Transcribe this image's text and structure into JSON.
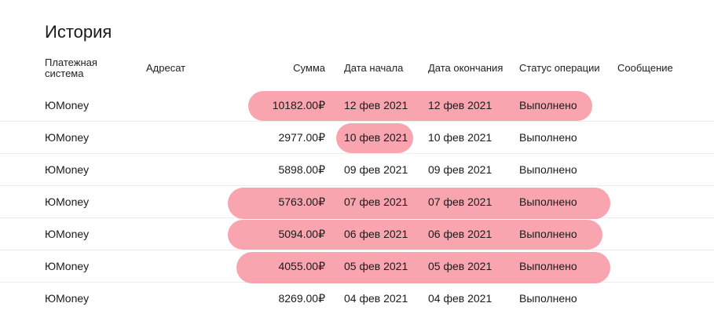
{
  "title": "История",
  "columns": {
    "system": "Платежная система",
    "system_line1": "Платежная",
    "system_line2": "система",
    "recipient": "Адресат",
    "sum": "Сумма",
    "start": "Дата начала",
    "end": "Дата окончания",
    "status": "Статус операции",
    "message": "Сообщение"
  },
  "rows": [
    {
      "system": "ЮMoney",
      "recipient": "",
      "sum": "10182.00₽",
      "start": "12 фев 2021",
      "end": "12 фев 2021",
      "status": "Выполнено",
      "message": ""
    },
    {
      "system": "ЮMoney",
      "recipient": "",
      "sum": "2977.00₽",
      "start": "10 фев 2021",
      "end": "10 фев 2021",
      "status": "Выполнено",
      "message": ""
    },
    {
      "system": "ЮMoney",
      "recipient": "",
      "sum": "5898.00₽",
      "start": "09 фев 2021",
      "end": "09 фев 2021",
      "status": "Выполнено",
      "message": ""
    },
    {
      "system": "ЮMoney",
      "recipient": "",
      "sum": "5763.00₽",
      "start": "07 фев 2021",
      "end": "07 фев 2021",
      "status": "Выполнено",
      "message": ""
    },
    {
      "system": "ЮMoney",
      "recipient": "",
      "sum": "5094.00₽",
      "start": "06 фев 2021",
      "end": "06 фев 2021",
      "status": "Выполнено",
      "message": ""
    },
    {
      "system": "ЮMoney",
      "recipient": "",
      "sum": "4055.00₽",
      "start": "05 фев 2021",
      "end": "05 фев 2021",
      "status": "Выполнено",
      "message": ""
    },
    {
      "system": "ЮMoney",
      "recipient": "",
      "sum": "8269.00₽",
      "start": "04 фев 2021",
      "end": "04 фев 2021",
      "status": "Выполнено",
      "message": ""
    }
  ],
  "highlight_color": "#f7919f"
}
